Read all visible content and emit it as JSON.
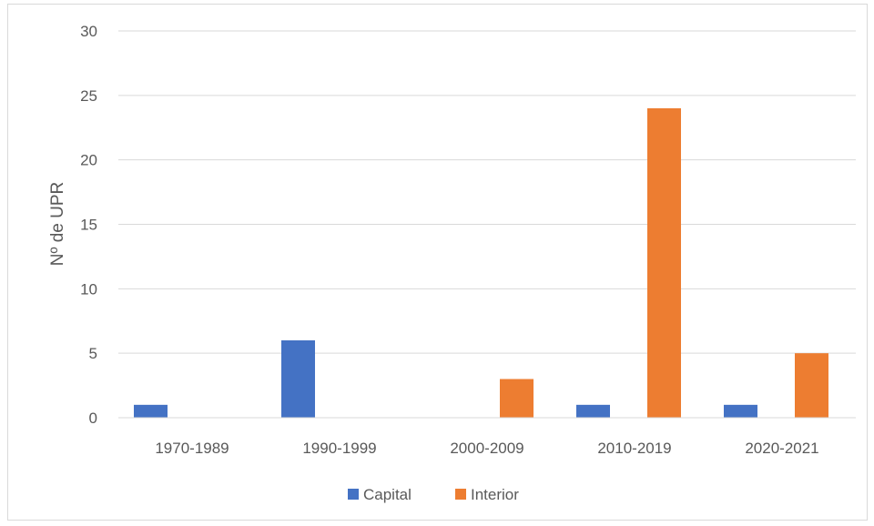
{
  "chart_data": {
    "type": "bar",
    "title": "",
    "xlabel": "",
    "ylabel": "Nº de UPR",
    "categories": [
      "1970-1989",
      "1990-1999",
      "2000-2009",
      "2010-2019",
      "2020-2021"
    ],
    "series": [
      {
        "name": "Capital",
        "values": [
          1,
          6,
          0,
          1,
          1
        ],
        "color": "#4472c4"
      },
      {
        "name": "Interior",
        "values": [
          0,
          0,
          3,
          24,
          5
        ],
        "color": "#ed7d31"
      }
    ],
    "ylim": [
      0,
      30
    ],
    "yticks": [
      "0",
      "5",
      "10",
      "15",
      "20",
      "25",
      "30"
    ],
    "grid": true,
    "legend": "bottom"
  }
}
